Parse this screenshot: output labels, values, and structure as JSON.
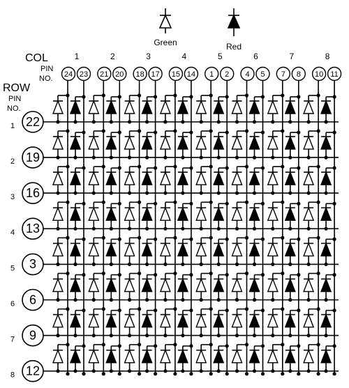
{
  "legend": {
    "green": "Green",
    "red": "Red"
  },
  "columns": {
    "label": "COL",
    "pin_label_lines": [
      "PIN",
      "NO."
    ],
    "items": [
      {
        "number": "1",
        "pins": [
          "24",
          "23"
        ]
      },
      {
        "number": "2",
        "pins": [
          "21",
          "20"
        ]
      },
      {
        "number": "3",
        "pins": [
          "18",
          "17"
        ]
      },
      {
        "number": "4",
        "pins": [
          "15",
          "14"
        ]
      },
      {
        "number": "5",
        "pins": [
          "1",
          "2"
        ]
      },
      {
        "number": "6",
        "pins": [
          "4",
          "5"
        ]
      },
      {
        "number": "7",
        "pins": [
          "7",
          "8"
        ]
      },
      {
        "number": "8",
        "pins": [
          "10",
          "11"
        ]
      }
    ]
  },
  "rows": {
    "label": "ROW",
    "pin_label_lines": [
      "PIN",
      "NO."
    ],
    "items": [
      {
        "number": "1",
        "pin": "22"
      },
      {
        "number": "2",
        "pin": "19"
      },
      {
        "number": "3",
        "pin": "16"
      },
      {
        "number": "4",
        "pin": "13"
      },
      {
        "number": "5",
        "pin": "3"
      },
      {
        "number": "6",
        "pin": "6"
      },
      {
        "number": "7",
        "pin": "9"
      },
      {
        "number": "8",
        "pin": "12"
      }
    ]
  }
}
